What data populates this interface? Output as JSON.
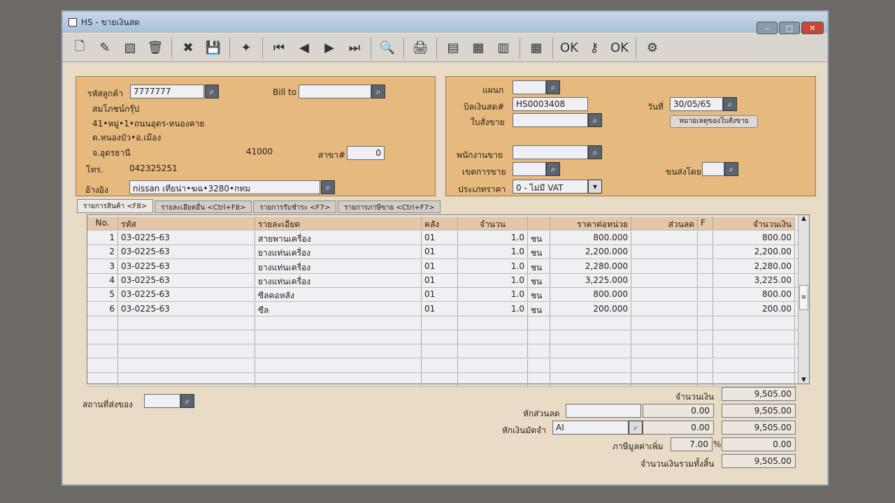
{
  "window": {
    "title": "HS - ขายเงินสด",
    "controls": [
      "–",
      "□",
      "✕"
    ]
  },
  "toolbar": {
    "buttons": [
      "new",
      "edit",
      "void",
      "delete",
      "cancel",
      "save",
      "tools",
      "first",
      "previous",
      "next",
      "last",
      "preview",
      "print",
      "export",
      "form",
      "report",
      "calendar",
      "approve",
      "unlock",
      "ok",
      "settings"
    ],
    "glyphs": [
      "🗋",
      "✎",
      "▨",
      "🗑",
      "✖",
      "💾",
      "✦",
      "⏮",
      "◀",
      "▶",
      "⏭",
      "🔍",
      "🖨",
      "▤",
      "▦",
      "▥",
      "▦",
      "OK",
      "⚷",
      "OK",
      "⚙"
    ]
  },
  "customer": {
    "code_label": "รหัสลูกค้า",
    "code": "7777777",
    "bill_to_label": "Bill to",
    "bill_to": "",
    "name": "สมโภชน์กรุ๊ป",
    "address1": "41•หมู่•1•ถนนอุดร-หนองคาย",
    "address2": "ต.หนองบัว•อ.เมือง",
    "province": "จ.อุดรธานี",
    "postcode": "41000",
    "branch_label": "สาขา#",
    "branch": "0",
    "phone_label": "โทร.",
    "phone": "042325251",
    "ref_label": "อ้างอิง",
    "ref": "nissan เทียน่า•ฆฉ•3280•กทม"
  },
  "document": {
    "dept_label": "แผนก",
    "dept": "",
    "bill_label": "บิลเงินสด#",
    "bill_no": "HS0003408",
    "date_label": "วันที่",
    "date": "30/05/65",
    "order_label": "ใบสั่งขาย",
    "order": "",
    "note_button": "หมายเหตุของใบสั่งขาย",
    "salesperson_label": "พนักงานขาย",
    "salesperson": "",
    "area_label": "เขตการขาย",
    "area": "",
    "shipper_label": "ขนส่งโดย",
    "shipper": "",
    "price_type_label": "ประเภทราคา",
    "price_type": "0 - ไม่มี VAT"
  },
  "tabs": [
    "รายการสินค้า <F8>",
    "รายละเอียดอื่น <Ctrl+F8>",
    "รายการรับชำระ <F7>",
    "รายการภาษีขาย <Ctrl+F7>"
  ],
  "grid": {
    "headers": [
      "No.",
      "รหัส",
      "รายละเอียด",
      "คลัง",
      "จำนวน",
      "",
      "ราคาต่อหน่วย",
      "ส่วนลด",
      "F",
      "จำนวนเงิน"
    ],
    "rows": [
      [
        "1",
        "03-0225-63",
        "สายพานเครื่อง",
        "01",
        "1.0",
        "ชน",
        "800.000",
        "",
        "",
        "800.00"
      ],
      [
        "2",
        "03-0225-63",
        "ยางแท่นเครื่อง",
        "01",
        "1.0",
        "ชน",
        "2,200.000",
        "",
        "",
        "2,200.00"
      ],
      [
        "3",
        "03-0225-63",
        "ยางแท่นเครื่อง",
        "01",
        "1.0",
        "ชน",
        "2,280.000",
        "",
        "",
        "2,280.00"
      ],
      [
        "4",
        "03-0225-63",
        "ยางแท่นเครื่อง",
        "01",
        "1.0",
        "ชน",
        "3,225.000",
        "",
        "",
        "3,225.00"
      ],
      [
        "5",
        "03-0225-63",
        "ซีลคอหลัง",
        "01",
        "1.0",
        "ชน",
        "800.000",
        "",
        "",
        "800.00"
      ],
      [
        "6",
        "03-0225-63",
        "ซีล",
        "01",
        "1.0",
        "ชน",
        "200.000",
        "",
        "",
        "200.00"
      ]
    ]
  },
  "footer": {
    "ship_to_label": "สถานที่ส่งของ",
    "ship_to": "",
    "amount_label": "จำนวนเงิน",
    "amount": "9,505.00",
    "discount_label": "หักส่วนลด",
    "discount_code": "",
    "discount": "0.00",
    "after_discount": "9,505.00",
    "deposit_label": "หักเงินมัดจำ",
    "deposit_code": "AI",
    "deposit": "0.00",
    "after_deposit": "9,505.00",
    "vat_label": "ภาษีมูลค่าเพิ่ม",
    "vat_rate": "7.00",
    "vat_unit": "%",
    "vat": "0.00",
    "total_label": "จำนวนเงินรวมทั้งสิ้น",
    "total": "9,505.00"
  }
}
